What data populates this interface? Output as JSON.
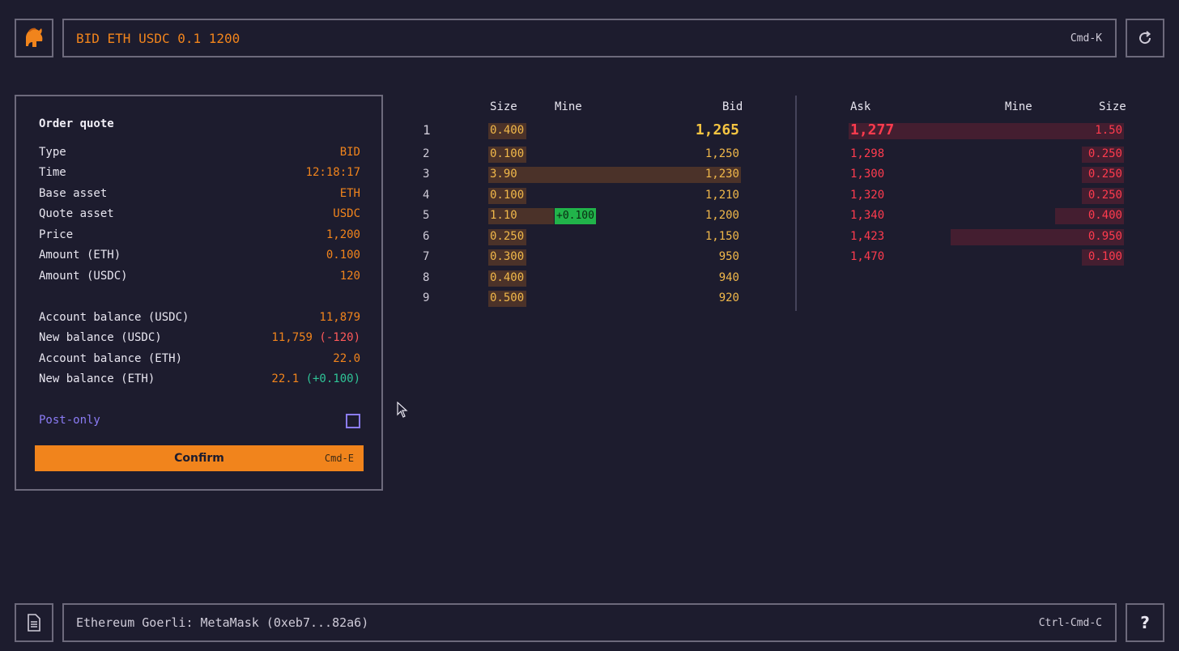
{
  "command": {
    "text": "BID ETH USDC 0.1 1200",
    "shortcut": "Cmd-K"
  },
  "icons": {
    "logo": "spartan-helmet-icon",
    "refresh": "refresh-icon",
    "doc": "document-icon",
    "help": "help-icon"
  },
  "colors": {
    "background": "#1d1c2e",
    "accent": "#f1841c",
    "bid": "#f1b84a",
    "ask": "#ff3b4e",
    "positive": "#2fc497",
    "negative": "#ff5a5a",
    "post_only": "#8b7cf5",
    "mine_tag": "#21b34a"
  },
  "quote": {
    "title": "Order quote",
    "rows": [
      {
        "label": "Type",
        "value": "BID"
      },
      {
        "label": "Time",
        "value": "12:18:17"
      },
      {
        "label": "Base asset",
        "value": "ETH"
      },
      {
        "label": "Quote asset",
        "value": "USDC"
      },
      {
        "label": "Price",
        "value": "1,200"
      },
      {
        "label": "Amount (ETH)",
        "value": "0.100"
      },
      {
        "label": "Amount (USDC)",
        "value": "120"
      }
    ],
    "balances": [
      {
        "label": "Account balance (USDC)",
        "value": "11,879",
        "delta": ""
      },
      {
        "label": "New balance (USDC)",
        "value": "11,759",
        "delta": "(-120)"
      },
      {
        "label": "Account balance (ETH)",
        "value": "22.0",
        "delta": ""
      },
      {
        "label": "New balance (ETH)",
        "value": "22.1",
        "delta": "(+0.100)"
      }
    ],
    "post_only_label": "Post-only",
    "post_only_checked": false,
    "confirm_label": "Confirm",
    "confirm_shortcut": "Cmd-E"
  },
  "bids": {
    "headers": {
      "size": "Size",
      "mine": "Mine",
      "price": "Bid"
    },
    "rows": [
      {
        "index": "1",
        "size": "0.400",
        "size_fraction": 0.1,
        "mine": "",
        "price": "1,265"
      },
      {
        "index": "2",
        "size": "0.100",
        "size_fraction": 0.1,
        "mine": "",
        "price": "1,250"
      },
      {
        "index": "3",
        "size": "3.90",
        "size_fraction": 1.0,
        "mine": "",
        "price": "1,230"
      },
      {
        "index": "4",
        "size": "0.100",
        "size_fraction": 0.1,
        "mine": "",
        "price": "1,210"
      },
      {
        "index": "5",
        "size": "1.10",
        "size_fraction": 0.26,
        "mine": "+0.100",
        "price": "1,200"
      },
      {
        "index": "6",
        "size": "0.250",
        "size_fraction": 0.1,
        "mine": "",
        "price": "1,150"
      },
      {
        "index": "7",
        "size": "0.300",
        "size_fraction": 0.1,
        "mine": "",
        "price": "950"
      },
      {
        "index": "8",
        "size": "0.400",
        "size_fraction": 0.12,
        "mine": "",
        "price": "940"
      },
      {
        "index": "9",
        "size": "0.500",
        "size_fraction": 0.15,
        "mine": "",
        "price": "920"
      }
    ]
  },
  "asks": {
    "headers": {
      "price": "Ask",
      "mine": "Mine",
      "size": "Size"
    },
    "rows": [
      {
        "price": "1,277",
        "size": "1.50",
        "size_fraction": 1.0
      },
      {
        "price": "1,298",
        "size": "0.250",
        "size_fraction": 0.15
      },
      {
        "price": "1,300",
        "size": "0.250",
        "size_fraction": 0.15
      },
      {
        "price": "1,320",
        "size": "0.250",
        "size_fraction": 0.15
      },
      {
        "price": "1,340",
        "size": "0.400",
        "size_fraction": 0.25
      },
      {
        "price": "1,423",
        "size": "0.950",
        "size_fraction": 0.63
      },
      {
        "price": "1,470",
        "size": "0.100",
        "size_fraction": 0.15
      }
    ]
  },
  "status": {
    "text": "Ethereum Goerli: MetaMask (0xeb7...82a6)",
    "shortcut": "Ctrl-Cmd-C",
    "help_label": "?"
  }
}
